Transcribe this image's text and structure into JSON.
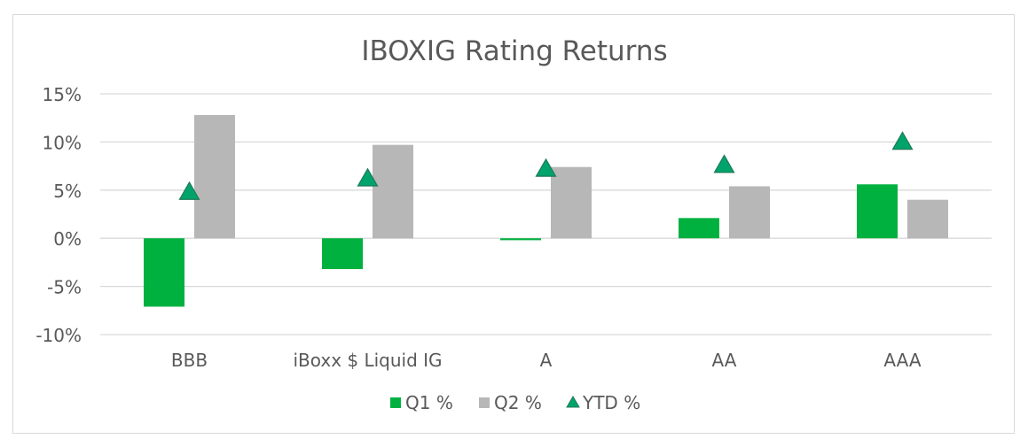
{
  "chart_data": {
    "type": "bar",
    "title": "IBOXIG Rating Returns",
    "categories": [
      "BBB",
      "iBoxx $ Liquid IG",
      "A",
      "AA",
      "AAA"
    ],
    "series": [
      {
        "name": "Q1 %",
        "kind": "bar",
        "color": "#00b140",
        "values": [
          -7.1,
          -3.2,
          -0.2,
          2.1,
          5.6
        ]
      },
      {
        "name": "Q2 %",
        "kind": "bar",
        "color": "#b7b7b7",
        "values": [
          12.8,
          9.7,
          7.4,
          5.4,
          4.0
        ]
      },
      {
        "name": "YTD %",
        "kind": "marker",
        "marker": "triangle",
        "color": "#00a36c",
        "values": [
          4.8,
          6.2,
          7.2,
          7.6,
          10.0
        ]
      }
    ],
    "ylim": [
      -10,
      15
    ],
    "yticks": [
      15,
      10,
      5,
      0,
      -5,
      -10
    ],
    "ytick_labels": [
      "15%",
      "10%",
      "5%",
      "0%",
      "-5%",
      "-10%"
    ],
    "grid": true,
    "legend_position": "bottom"
  }
}
